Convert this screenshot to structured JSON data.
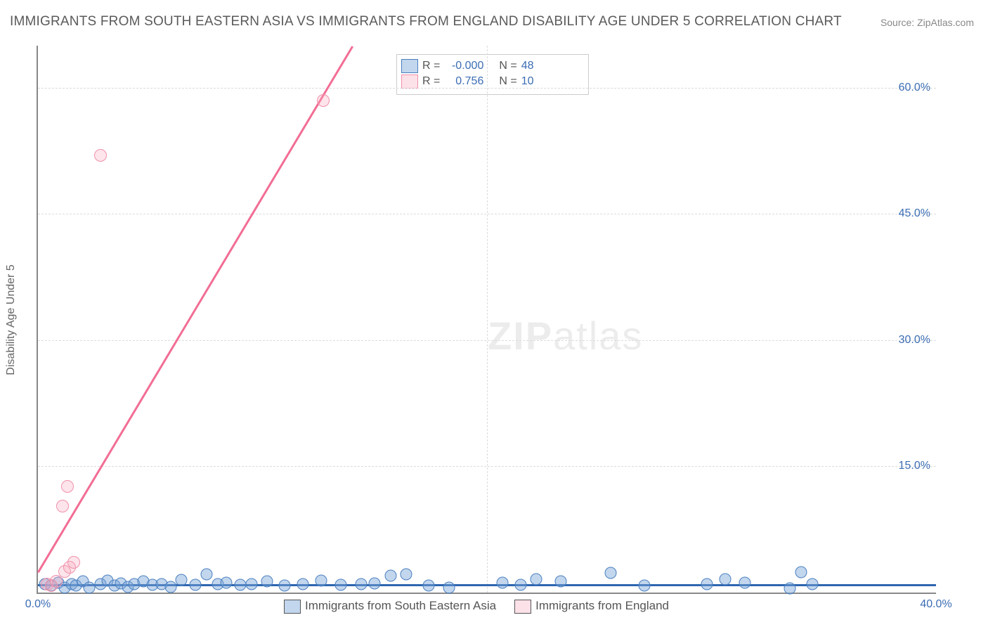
{
  "title": "IMMIGRANTS FROM SOUTH EASTERN ASIA VS IMMIGRANTS FROM ENGLAND DISABILITY AGE UNDER 5 CORRELATION CHART",
  "source": "Source: ZipAtlas.com",
  "ylabel": "Disability Age Under 5",
  "watermark_bold": "ZIP",
  "watermark_rest": "atlas",
  "chart": {
    "type": "scatter",
    "xlim": [
      0,
      40
    ],
    "ylim": [
      0,
      65
    ],
    "xtick_values": [
      0,
      40
    ],
    "xtick_labels": [
      "0.0%",
      "40.0%"
    ],
    "ytick_values": [
      15,
      30,
      45,
      60
    ],
    "ytick_labels": [
      "15.0%",
      "30.0%",
      "45.0%",
      "60.0%"
    ],
    "grid_color": "#dcdcdc",
    "axis_color": "#888888",
    "background_color": "#ffffff",
    "series": [
      {
        "name": "Immigrants from South Eastern Asia",
        "color_fill": "rgba(120,165,215,0.45)",
        "color_stroke": "#4a7fc0",
        "R": "-0.000",
        "N": "48",
        "trend": {
          "x1": 0,
          "y1": 1.0,
          "x2": 40,
          "y2": 1.0,
          "color": "#2e66b0"
        },
        "points": [
          [
            0.3,
            1.0
          ],
          [
            0.6,
            0.8
          ],
          [
            0.9,
            1.2
          ],
          [
            1.2,
            0.6
          ],
          [
            1.5,
            1.0
          ],
          [
            1.7,
            0.8
          ],
          [
            2.0,
            1.3
          ],
          [
            2.3,
            0.6
          ],
          [
            2.8,
            1.0
          ],
          [
            3.1,
            1.4
          ],
          [
            3.4,
            0.8
          ],
          [
            3.7,
            1.1
          ],
          [
            4.0,
            0.7
          ],
          [
            4.3,
            1.0
          ],
          [
            4.7,
            1.3
          ],
          [
            5.1,
            0.9
          ],
          [
            5.5,
            1.0
          ],
          [
            5.9,
            0.7
          ],
          [
            6.4,
            1.5
          ],
          [
            7.0,
            0.9
          ],
          [
            7.5,
            2.2
          ],
          [
            8.0,
            1.0
          ],
          [
            8.4,
            1.2
          ],
          [
            9.0,
            0.9
          ],
          [
            9.5,
            1.0
          ],
          [
            10.2,
            1.3
          ],
          [
            11.0,
            0.8
          ],
          [
            11.8,
            1.0
          ],
          [
            12.6,
            1.4
          ],
          [
            13.5,
            0.9
          ],
          [
            14.4,
            1.0
          ],
          [
            15.0,
            1.1
          ],
          [
            15.7,
            2.0
          ],
          [
            16.4,
            2.2
          ],
          [
            17.4,
            0.8
          ],
          [
            18.3,
            0.6
          ],
          [
            20.7,
            1.2
          ],
          [
            21.5,
            0.9
          ],
          [
            22.2,
            1.6
          ],
          [
            23.3,
            1.3
          ],
          [
            25.5,
            2.3
          ],
          [
            27.0,
            0.8
          ],
          [
            29.8,
            1.0
          ],
          [
            30.6,
            1.6
          ],
          [
            31.5,
            1.2
          ],
          [
            33.5,
            0.5
          ],
          [
            34.5,
            1.0
          ],
          [
            34.0,
            2.4
          ]
        ]
      },
      {
        "name": "Immigrants from England",
        "color_fill": "rgba(248,170,190,0.30)",
        "color_stroke": "#f090aa",
        "R": "0.756",
        "N": "10",
        "trend": {
          "x1": 0,
          "y1": 2.5,
          "x2": 14.0,
          "y2": 65.0,
          "color": "#f26d94"
        },
        "points": [
          [
            0.4,
            1.0
          ],
          [
            0.6,
            0.8
          ],
          [
            0.8,
            1.3
          ],
          [
            1.2,
            2.5
          ],
          [
            1.4,
            3.0
          ],
          [
            1.6,
            3.6
          ],
          [
            1.1,
            10.3
          ],
          [
            1.3,
            12.6
          ],
          [
            2.8,
            52.0
          ],
          [
            12.7,
            58.5
          ]
        ]
      }
    ],
    "legend_lines": [
      {
        "swatch": "blue",
        "r_label": "R =",
        "r_value": "-0.000",
        "n_label": "N =",
        "n_value": "48"
      },
      {
        "swatch": "pink",
        "r_label": "R =",
        "r_value": "0.756",
        "n_label": "N =",
        "n_value": "10"
      }
    ]
  }
}
